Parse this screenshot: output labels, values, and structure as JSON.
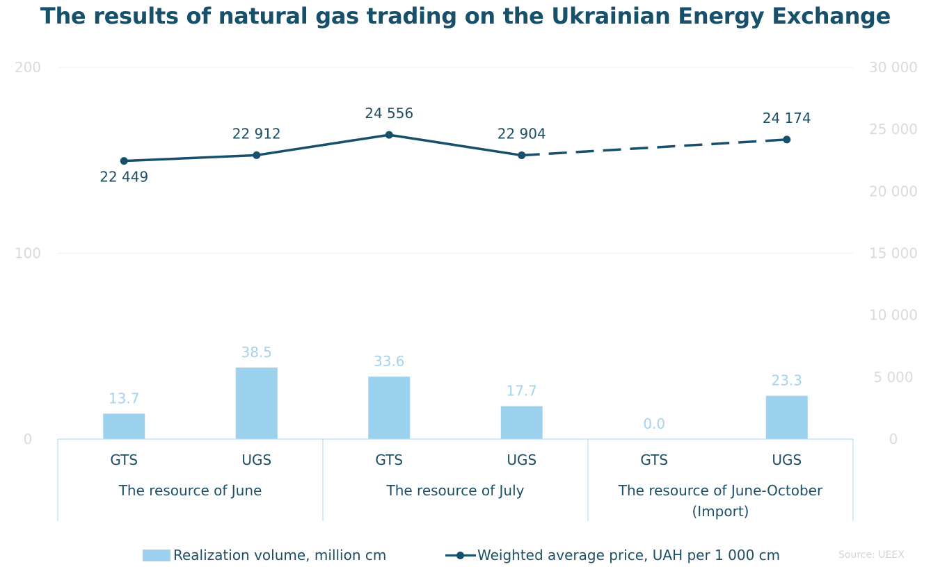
{
  "title": "The results of natural gas trading on the Ukrainian Energy Exchange",
  "source": "Source: UEEX",
  "colors": {
    "bar": "#9dd2ee",
    "line": "#17506a",
    "axis_text": "#dadada",
    "grid": "#efefef",
    "title": "#17506a"
  },
  "chart_data": {
    "type": "bar",
    "title": "The results of natural gas trading on the Ukrainian Energy Exchange",
    "groups": [
      {
        "label": "The resource of June",
        "categories": [
          "GTS",
          "UGS"
        ]
      },
      {
        "label": "The resource of July",
        "categories": [
          "GTS",
          "UGS"
        ]
      },
      {
        "label": "The resource of June-October (Import)",
        "label_lines": [
          "The resource of June-October",
          "(Import)"
        ],
        "categories": [
          "GTS",
          "UGS"
        ]
      }
    ],
    "categories": [
      "GTS",
      "UGS",
      "GTS",
      "UGS",
      "GTS",
      "UGS"
    ],
    "series": [
      {
        "name": "Realization volume, million cm",
        "type": "bar",
        "axis": "left",
        "values": [
          13.7,
          38.5,
          33.6,
          17.7,
          0.0,
          23.3
        ],
        "labels": [
          "13.7",
          "38.5",
          "33.6",
          "17.7",
          "0.0",
          "23.3"
        ]
      },
      {
        "name": "Weighted average price, UAH per 1 000 cm",
        "type": "line",
        "axis": "right",
        "values": [
          22449,
          22912,
          24556,
          22904,
          null,
          24174
        ],
        "labels": [
          "22 449",
          "22 912",
          "24 556",
          "22 904",
          "",
          "24 174"
        ],
        "dashed_from_index": 3
      }
    ],
    "ylim_left": [
      0,
      200
    ],
    "yticks_left": [
      0,
      100,
      200
    ],
    "yticks_left_labels": [
      "0",
      "100",
      "200"
    ],
    "ylim_right": [
      0,
      30000
    ],
    "yticks_right": [
      0,
      5000,
      10000,
      15000,
      20000,
      25000,
      30000
    ],
    "yticks_right_labels": [
      "0",
      "5 000",
      "10 000",
      "15 000",
      "20 000",
      "25 000",
      "30 000"
    ],
    "grid": true,
    "legend_position": "bottom"
  }
}
